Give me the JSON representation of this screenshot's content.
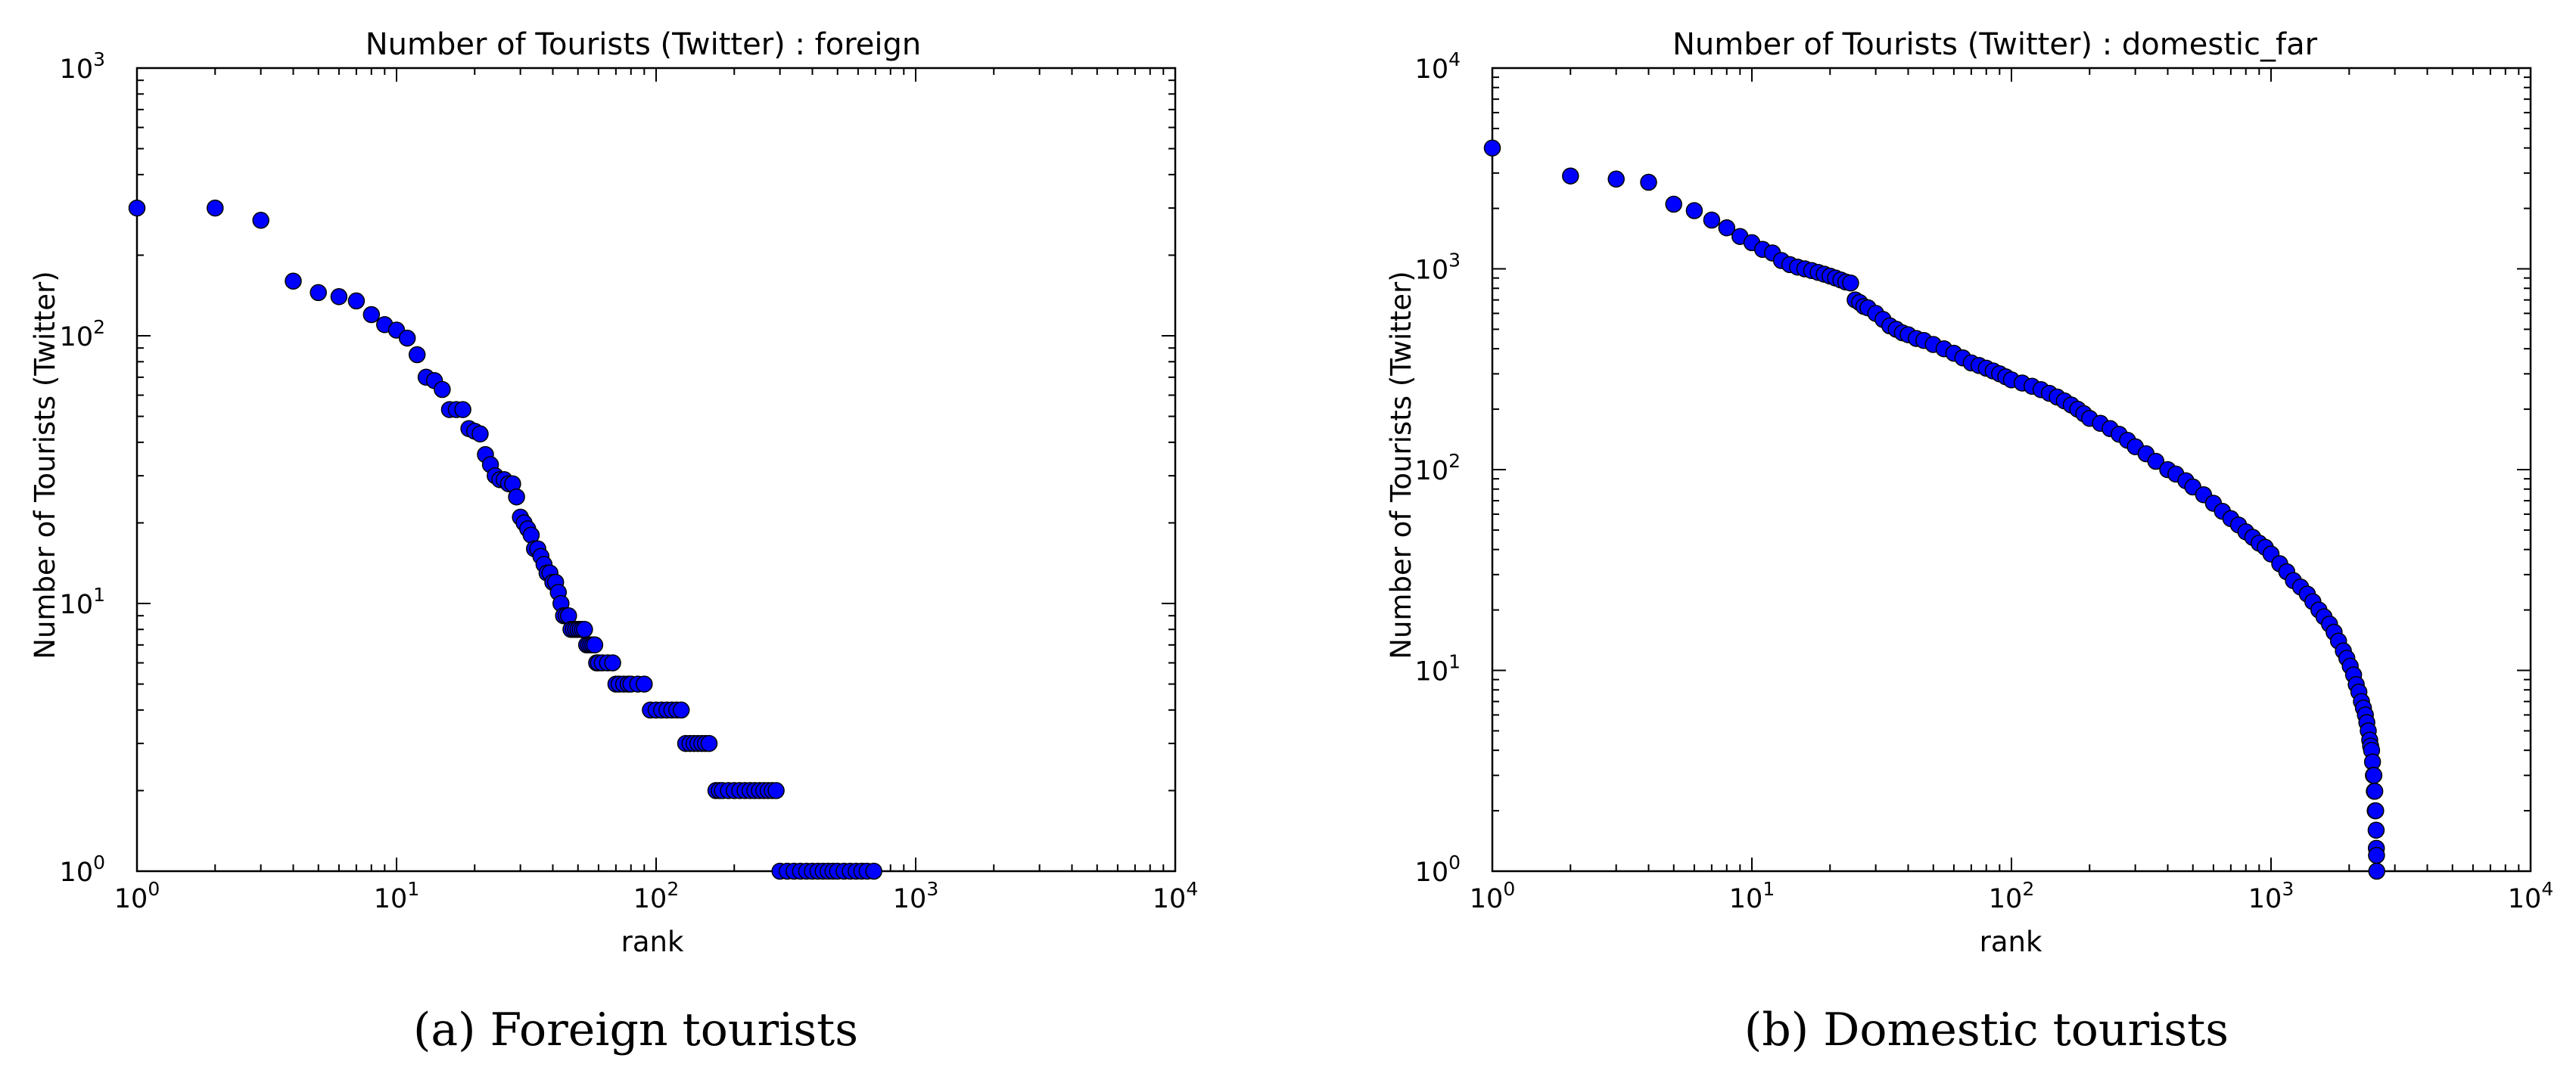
{
  "chart_data": [
    {
      "type": "scatter",
      "title": "Number of Tourists (Twitter) : foreign",
      "xlabel": "rank",
      "ylabel": "Number of Tourists (Twitter)",
      "xscale": "log",
      "yscale": "log",
      "xlim": [
        1,
        10000
      ],
      "ylim": [
        1,
        1000
      ],
      "grid": false,
      "x_ticks": [
        1,
        10,
        100,
        1000,
        10000
      ],
      "y_ticks": [
        1,
        10,
        100,
        1000
      ],
      "marker_color": "#0000ff",
      "caption": "(a)  Foreign tourists",
      "series": [
        {
          "x": [
            1,
            2,
            3,
            4,
            5,
            6,
            7,
            8,
            9,
            10,
            11,
            12,
            13,
            14,
            15,
            16,
            17,
            18,
            19,
            20,
            21,
            22,
            23,
            24,
            25,
            26,
            27,
            28,
            29,
            30,
            31,
            32,
            33,
            34,
            35,
            36,
            37,
            38,
            39,
            40,
            41,
            42,
            43,
            44,
            45,
            46,
            47,
            48,
            49,
            50,
            51,
            52,
            53,
            54,
            55,
            56,
            57,
            58,
            59,
            60,
            62,
            65,
            68,
            70,
            72,
            75,
            78,
            80,
            85,
            90,
            95,
            100,
            105,
            110,
            115,
            120,
            125,
            130,
            135,
            140,
            145,
            150,
            155,
            160,
            170,
            175,
            180,
            190,
            200,
            210,
            220,
            230,
            240,
            250,
            260,
            270,
            280,
            290,
            300,
            320,
            340,
            360,
            380,
            400,
            420,
            440,
            460,
            480,
            500,
            530,
            560,
            590,
            620,
            650,
            690
          ],
          "y": [
            300,
            300,
            270,
            160,
            145,
            140,
            135,
            120,
            110,
            105,
            98,
            85,
            70,
            68,
            63,
            53,
            53,
            53,
            45,
            44,
            43,
            36,
            33,
            30,
            29,
            29,
            28,
            28,
            25,
            21,
            20,
            19,
            18,
            16,
            16,
            15,
            14,
            13,
            13,
            12,
            12,
            11,
            10,
            9,
            9,
            9,
            8,
            8,
            8,
            8,
            8,
            8,
            8,
            7,
            7,
            7,
            7,
            7,
            6,
            6,
            6,
            6,
            6,
            5,
            5,
            5,
            5,
            5,
            5,
            5,
            4,
            4,
            4,
            4,
            4,
            4,
            4,
            3,
            3,
            3,
            3,
            3,
            3,
            3,
            2,
            2,
            2,
            2,
            2,
            2,
            2,
            2,
            2,
            2,
            2,
            2,
            2,
            2,
            1,
            1,
            1,
            1,
            1,
            1,
            1,
            1,
            1,
            1,
            1,
            1,
            1,
            1,
            1,
            1,
            1
          ]
        }
      ]
    },
    {
      "type": "scatter",
      "title": "Number of Tourists (Twitter) : domestic_far",
      "xlabel": "rank",
      "ylabel": "Number of Tourists (Twitter)",
      "xscale": "log",
      "yscale": "log",
      "xlim": [
        1,
        10000
      ],
      "ylim": [
        1,
        10000
      ],
      "grid": false,
      "x_ticks": [
        1,
        10,
        100,
        1000,
        10000
      ],
      "y_ticks": [
        1,
        10,
        100,
        1000,
        10000
      ],
      "marker_color": "#0000ff",
      "caption": "(b)  Domestic tourists",
      "series": [
        {
          "x": [
            1,
            2,
            3,
            4,
            5,
            6,
            7,
            8,
            9,
            10,
            11,
            12,
            13,
            14,
            15,
            16,
            17,
            18,
            19,
            20,
            21,
            22,
            23,
            24,
            25,
            26,
            27,
            28,
            30,
            32,
            34,
            36,
            38,
            40,
            43,
            46,
            50,
            55,
            60,
            65,
            70,
            75,
            80,
            85,
            90,
            95,
            100,
            110,
            120,
            130,
            140,
            150,
            160,
            170,
            180,
            190,
            200,
            220,
            240,
            260,
            280,
            300,
            330,
            360,
            400,
            430,
            470,
            500,
            550,
            600,
            650,
            700,
            750,
            800,
            850,
            900,
            950,
            1000,
            1080,
            1150,
            1220,
            1300,
            1380,
            1450,
            1530,
            1600,
            1680,
            1750,
            1820,
            1900,
            1960,
            2020,
            2080,
            2130,
            2180,
            2230,
            2270,
            2310,
            2340,
            2370,
            2400,
            2420,
            2440,
            2460,
            2480,
            2490,
            2500,
            2510,
            2520,
            2530,
            2540,
            2545,
            2550,
            2555
          ],
          "y": [
            4000,
            2900,
            2800,
            2700,
            2100,
            1950,
            1750,
            1600,
            1450,
            1350,
            1250,
            1200,
            1100,
            1050,
            1020,
            1000,
            980,
            960,
            940,
            920,
            900,
            880,
            860,
            850,
            700,
            680,
            650,
            640,
            600,
            560,
            520,
            500,
            480,
            470,
            450,
            440,
            420,
            400,
            380,
            360,
            340,
            330,
            320,
            310,
            300,
            290,
            280,
            270,
            260,
            250,
            240,
            230,
            220,
            210,
            200,
            190,
            180,
            170,
            160,
            150,
            140,
            130,
            120,
            110,
            100,
            95,
            88,
            82,
            75,
            68,
            62,
            57,
            53,
            49,
            46,
            43,
            41,
            38,
            34,
            31,
            28,
            26,
            24,
            22,
            20,
            18.5,
            17,
            15.5,
            14,
            12.5,
            11.5,
            10.5,
            9.5,
            8.5,
            7.8,
            7,
            6.5,
            6,
            5.5,
            5,
            4.5,
            4.2,
            4,
            3.5,
            3,
            3,
            2.5,
            2.5,
            2,
            2,
            1.6,
            1.3,
            1.2,
            1
          ]
        }
      ]
    }
  ]
}
